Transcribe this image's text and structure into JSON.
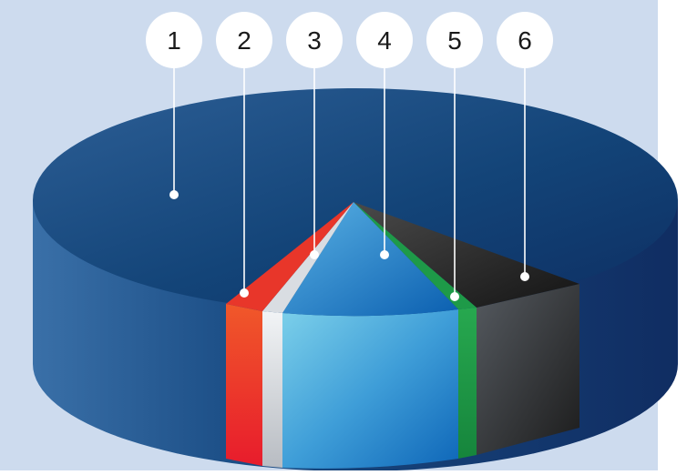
{
  "markers": [
    {
      "label": "1",
      "color": "#1d4f86"
    },
    {
      "label": "2",
      "color": "#e8362a"
    },
    {
      "label": "3",
      "color": "#d9dde2"
    },
    {
      "label": "4",
      "color": "#3f9ed8"
    },
    {
      "label": "5",
      "color": "#1e9a48"
    },
    {
      "label": "6",
      "color": "#2b2b2b"
    }
  ],
  "colors": {
    "panel_background": "#cddbee",
    "page_background": "#ffffff",
    "leader_line": "#ffffff",
    "label_circle": "#ffffff",
    "label_text": "#1a1a1a"
  }
}
